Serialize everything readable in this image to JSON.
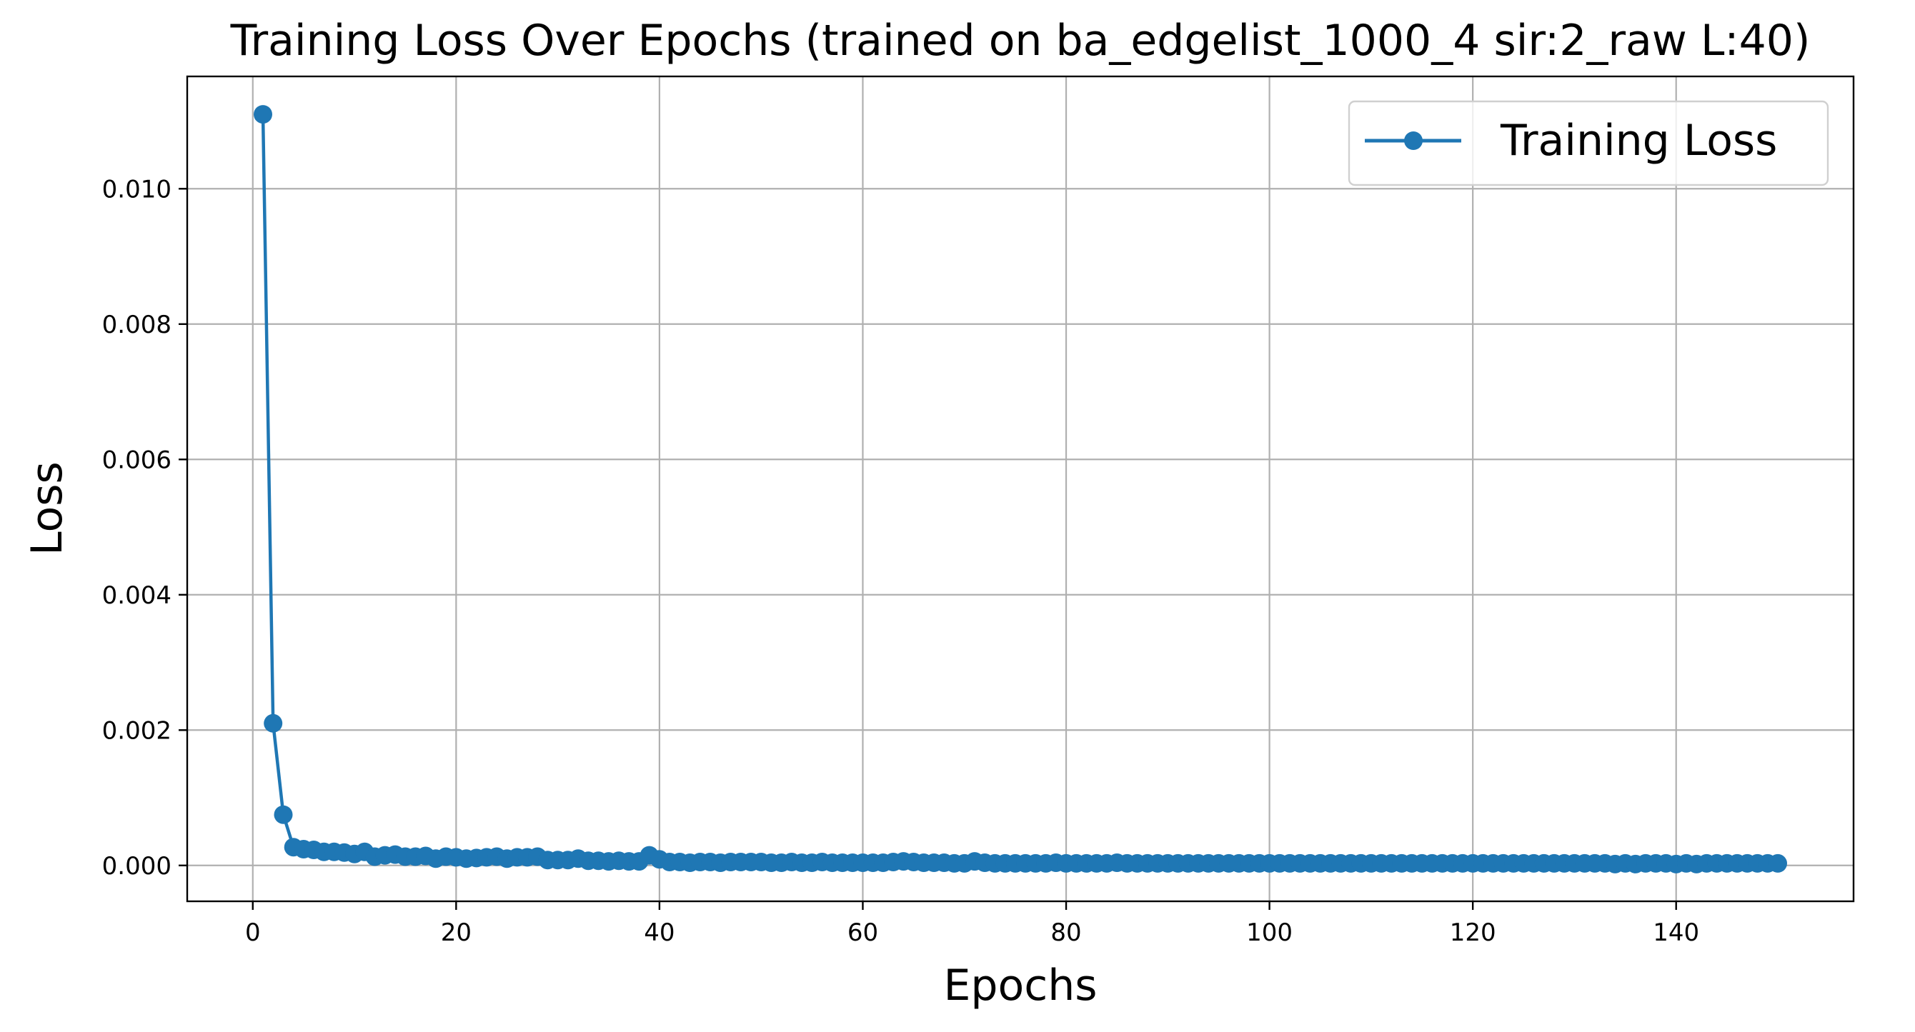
{
  "chart_data": {
    "type": "line",
    "title": "Training Loss Over Epochs (trained on ba_edgelist_1000_4 sir:2_raw L:40)",
    "xlabel": "Epochs",
    "ylabel": "Loss",
    "xlim": [
      -6.45,
      157.45
    ],
    "ylim": [
      -0.00053,
      0.01166
    ],
    "xticks": [
      0,
      20,
      40,
      60,
      80,
      100,
      120,
      140
    ],
    "xtick_labels": [
      "0",
      "20",
      "40",
      "60",
      "80",
      "100",
      "120",
      "140"
    ],
    "yticks": [
      0.0,
      0.002,
      0.004,
      0.006,
      0.008,
      0.01
    ],
    "ytick_labels": [
      "0.000",
      "0.002",
      "0.004",
      "0.006",
      "0.008",
      "0.010"
    ],
    "grid": true,
    "legend_position": "top-right",
    "series": [
      {
        "name": "Training Loss",
        "color": "#1f77b4",
        "marker": "circle",
        "x": [
          1,
          2,
          3,
          4,
          5,
          6,
          7,
          8,
          9,
          10,
          11,
          12,
          13,
          14,
          15,
          16,
          17,
          18,
          19,
          20,
          21,
          22,
          23,
          24,
          25,
          26,
          27,
          28,
          29,
          30,
          31,
          32,
          33,
          34,
          35,
          36,
          37,
          38,
          39,
          40,
          41,
          42,
          43,
          44,
          45,
          46,
          47,
          48,
          49,
          50,
          51,
          52,
          53,
          54,
          55,
          56,
          57,
          58,
          59,
          60,
          61,
          62,
          63,
          64,
          65,
          66,
          67,
          68,
          69,
          70,
          71,
          72,
          73,
          74,
          75,
          76,
          77,
          78,
          79,
          80,
          81,
          82,
          83,
          84,
          85,
          86,
          87,
          88,
          89,
          90,
          91,
          92,
          93,
          94,
          95,
          96,
          97,
          98,
          99,
          100,
          101,
          102,
          103,
          104,
          105,
          106,
          107,
          108,
          109,
          110,
          111,
          112,
          113,
          114,
          115,
          116,
          117,
          118,
          119,
          120,
          121,
          122,
          123,
          124,
          125,
          126,
          127,
          128,
          129,
          130,
          131,
          132,
          133,
          134,
          135,
          136,
          137,
          138,
          139,
          140,
          141,
          142,
          143,
          144,
          145,
          146,
          147,
          148,
          149,
          150
        ],
        "y": [
          0.0111,
          0.0021,
          0.00075,
          0.00027,
          0.00024,
          0.00023,
          0.0002,
          0.0002,
          0.00019,
          0.00017,
          0.0002,
          0.00013,
          0.00015,
          0.00016,
          0.00013,
          0.00013,
          0.00014,
          0.0001,
          0.00013,
          0.00012,
          0.0001,
          0.00011,
          0.00012,
          0.00013,
          0.0001,
          0.00012,
          0.00012,
          0.00013,
          8e-05,
          8e-05,
          8e-05,
          0.0001,
          7e-05,
          7e-05,
          6e-05,
          7e-05,
          6e-05,
          6e-05,
          0.00015,
          9e-05,
          5e-05,
          5e-05,
          4e-05,
          5e-05,
          5e-05,
          4e-05,
          5e-05,
          5e-05,
          5e-05,
          5e-05,
          4e-05,
          4e-05,
          5e-05,
          4e-05,
          4e-05,
          5e-05,
          4e-05,
          4e-05,
          4e-05,
          4e-05,
          4e-05,
          4e-05,
          5e-05,
          6e-05,
          5e-05,
          4e-05,
          4e-05,
          4e-05,
          3e-05,
          3e-05,
          6e-05,
          4e-05,
          3e-05,
          3e-05,
          3e-05,
          3e-05,
          3e-05,
          3e-05,
          4e-05,
          3e-05,
          3e-05,
          3e-05,
          3e-05,
          3e-05,
          4e-05,
          3e-05,
          3e-05,
          3e-05,
          3e-05,
          3e-05,
          3e-05,
          3e-05,
          3e-05,
          3e-05,
          3e-05,
          3e-05,
          3e-05,
          3e-05,
          3e-05,
          3e-05,
          3e-05,
          3e-05,
          3e-05,
          3e-05,
          3e-05,
          3e-05,
          3e-05,
          3e-05,
          3e-05,
          3e-05,
          3e-05,
          3e-05,
          3e-05,
          3e-05,
          3e-05,
          3e-05,
          3e-05,
          3e-05,
          3e-05,
          3e-05,
          3e-05,
          3e-05,
          3e-05,
          3e-05,
          3e-05,
          3e-05,
          3e-05,
          3e-05,
          3e-05,
          3e-05,
          3e-05,
          3e-05,
          3e-05,
          2e-05,
          3e-05,
          2e-05,
          3e-05,
          3e-05,
          3e-05,
          2e-05,
          3e-05,
          2e-05,
          3e-05,
          3e-05,
          3e-05,
          3e-05,
          3e-05,
          3e-05,
          3e-05,
          3e-05
        ]
      }
    ]
  }
}
